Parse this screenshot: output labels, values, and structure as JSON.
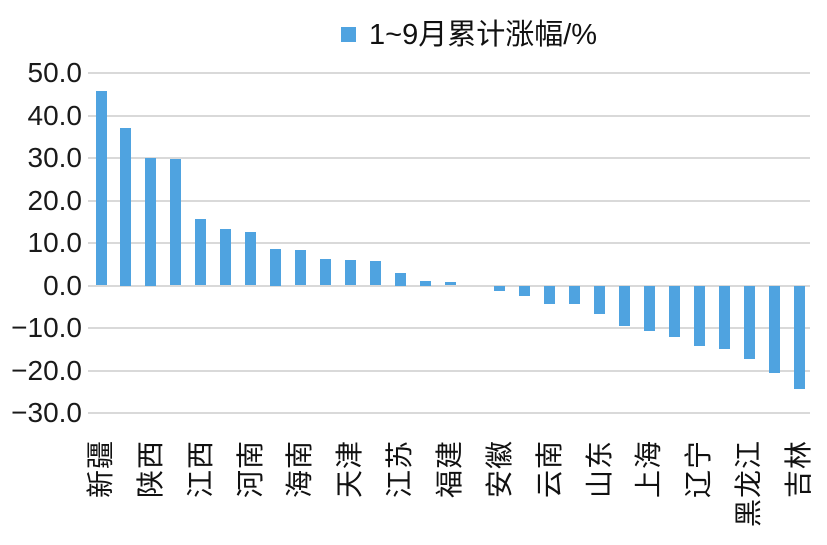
{
  "chart_data": {
    "type": "bar",
    "title": "",
    "series_name": "1~9月累计涨幅/%",
    "legend_position": "top-center",
    "grid": true,
    "ylim": [
      -30,
      50
    ],
    "ytick_step": 10,
    "ytick_labels": [
      "50.0",
      "40.0",
      "30.0",
      "20.0",
      "10.0",
      "0.0",
      "−10.0",
      "−20.0",
      "−30.0"
    ],
    "bar_color": "#4fa3e0",
    "gridline_color": "#d9d9d9",
    "categories": [
      "新疆",
      "",
      "陕西",
      "",
      "江西",
      "",
      "河南",
      "",
      "海南",
      "",
      "天津",
      "",
      "江苏",
      "",
      "福建",
      "",
      "安徽",
      "",
      "云南",
      "",
      "山东",
      "",
      "上海",
      "",
      "辽宁",
      "",
      "黑龙江",
      "",
      "吉林"
    ],
    "values": [
      45.7,
      37.0,
      30.0,
      29.7,
      15.7,
      13.2,
      12.7,
      8.5,
      8.4,
      6.2,
      5.9,
      5.8,
      3.0,
      1.0,
      0.9,
      0.0,
      -1.2,
      -2.4,
      -4.3,
      -4.4,
      -6.7,
      -9.5,
      -10.7,
      -12.0,
      -14.3,
      -15.0,
      -17.3,
      -20.7,
      -24.3
    ]
  }
}
